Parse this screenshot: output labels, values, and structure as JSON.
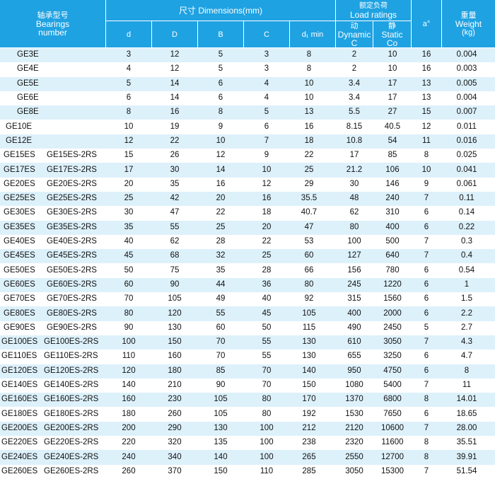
{
  "header": {
    "bearings": [
      "轴承型号",
      "Bearings",
      "number"
    ],
    "dimensions": "尺寸 Dimensions(mm)",
    "load": [
      "额定负荷",
      "Load ratings"
    ],
    "angle": "a°",
    "weight": [
      "重量",
      "Weight",
      "(kg)"
    ],
    "columns": [
      "d",
      "D",
      "B",
      "C",
      "d₁ min"
    ],
    "dynamic": [
      "动",
      "Dynamic",
      "C"
    ],
    "static": [
      "静",
      "Static",
      "Co"
    ]
  },
  "rows": [
    {
      "model": "GE3E",
      "values": [
        "3",
        "12",
        "5",
        "3",
        "8",
        "2",
        "10",
        "16",
        "0.004"
      ]
    },
    {
      "model": "GE4E",
      "values": [
        "4",
        "12",
        "5",
        "3",
        "8",
        "2",
        "10",
        "16",
        "0.003"
      ]
    },
    {
      "model": "GE5E",
      "values": [
        "5",
        "14",
        "6",
        "4",
        "10",
        "3.4",
        "17",
        "13",
        "0.005"
      ]
    },
    {
      "model": "GE6E",
      "values": [
        "6",
        "14",
        "6",
        "4",
        "10",
        "3.4",
        "17",
        "13",
        "0.004"
      ]
    },
    {
      "model": "GE8E",
      "values": [
        "8",
        "16",
        "8",
        "5",
        "13",
        "5.5",
        "27",
        "15",
        "0.007"
      ]
    },
    {
      "model": "GE10E",
      "values": [
        "10",
        "19",
        "9",
        "6",
        "16",
        "8.15",
        "40.5",
        "12",
        "0.011"
      ]
    },
    {
      "model": "GE12E",
      "values": [
        "12",
        "22",
        "10",
        "7",
        "18",
        "10.8",
        "54",
        "11",
        "0.016"
      ]
    },
    {
      "model": "GE15ES",
      "seal": "GE15ES-2RS",
      "values": [
        "15",
        "26",
        "12",
        "9",
        "22",
        "17",
        "85",
        "8",
        "0.025"
      ]
    },
    {
      "model": "GE17ES",
      "seal": "GE17ES-2RS",
      "values": [
        "17",
        "30",
        "14",
        "10",
        "25",
        "21.2",
        "106",
        "10",
        "0.041"
      ]
    },
    {
      "model": "GE20ES",
      "seal": "GE20ES-2RS",
      "values": [
        "20",
        "35",
        "16",
        "12",
        "29",
        "30",
        "146",
        "9",
        "0.061"
      ]
    },
    {
      "model": "GE25ES",
      "seal": "GE25ES-2RS",
      "values": [
        "25",
        "42",
        "20",
        "16",
        "35.5",
        "48",
        "240",
        "7",
        "0.11"
      ]
    },
    {
      "model": "GE30ES",
      "seal": "GE30ES-2RS",
      "values": [
        "30",
        "47",
        "22",
        "18",
        "40.7",
        "62",
        "310",
        "6",
        "0.14"
      ]
    },
    {
      "model": "GE35ES",
      "seal": "GE35ES-2RS",
      "values": [
        "35",
        "55",
        "25",
        "20",
        "47",
        "80",
        "400",
        "6",
        "0.22"
      ]
    },
    {
      "model": "GE40ES",
      "seal": "GE40ES-2RS",
      "values": [
        "40",
        "62",
        "28",
        "22",
        "53",
        "100",
        "500",
        "7",
        "0.3"
      ]
    },
    {
      "model": "GE45ES",
      "seal": "GE45ES-2RS",
      "values": [
        "45",
        "68",
        "32",
        "25",
        "60",
        "127",
        "640",
        "7",
        "0.4"
      ]
    },
    {
      "model": "GE50ES",
      "seal": "GE50ES-2RS",
      "values": [
        "50",
        "75",
        "35",
        "28",
        "66",
        "156",
        "780",
        "6",
        "0.54"
      ]
    },
    {
      "model": "GE60ES",
      "seal": "GE60ES-2RS",
      "values": [
        "60",
        "90",
        "44",
        "36",
        "80",
        "245",
        "1220",
        "6",
        "1"
      ]
    },
    {
      "model": "GE70ES",
      "seal": "GE70ES-2RS",
      "values": [
        "70",
        "105",
        "49",
        "40",
        "92",
        "315",
        "1560",
        "6",
        "1.5"
      ]
    },
    {
      "model": "GE80ES",
      "seal": "GE80ES-2RS",
      "values": [
        "80",
        "120",
        "55",
        "45",
        "105",
        "400",
        "2000",
        "6",
        "2.2"
      ]
    },
    {
      "model": "GE90ES",
      "seal": "GE90ES-2RS",
      "values": [
        "90",
        "130",
        "60",
        "50",
        "115",
        "490",
        "2450",
        "5",
        "2.7"
      ]
    },
    {
      "model": "GE100ES",
      "seal": "GE100ES-2RS",
      "values": [
        "100",
        "150",
        "70",
        "55",
        "130",
        "610",
        "3050",
        "7",
        "4.3"
      ]
    },
    {
      "model": "GE110ES",
      "seal": "GE110ES-2RS",
      "values": [
        "110",
        "160",
        "70",
        "55",
        "130",
        "655",
        "3250",
        "6",
        "4.7"
      ]
    },
    {
      "model": "GE120ES",
      "seal": "GE120ES-2RS",
      "values": [
        "120",
        "180",
        "85",
        "70",
        "140",
        "950",
        "4750",
        "6",
        "8"
      ]
    },
    {
      "model": "GE140ES",
      "seal": "GE140ES-2RS",
      "values": [
        "140",
        "210",
        "90",
        "70",
        "150",
        "1080",
        "5400",
        "7",
        "11"
      ]
    },
    {
      "model": "GE160ES",
      "seal": "GE160ES-2RS",
      "values": [
        "160",
        "230",
        "105",
        "80",
        "170",
        "1370",
        "6800",
        "8",
        "14.01"
      ]
    },
    {
      "model": "GE180ES",
      "seal": "GE180ES-2RS",
      "values": [
        "180",
        "260",
        "105",
        "80",
        "192",
        "1530",
        "7650",
        "6",
        "18.65"
      ]
    },
    {
      "model": "GE200ES",
      "seal": "GE200ES-2RS",
      "values": [
        "200",
        "290",
        "130",
        "100",
        "212",
        "2120",
        "10600",
        "7",
        "28.00"
      ]
    },
    {
      "model": "GE220ES",
      "seal": "GE220ES-2RS",
      "values": [
        "220",
        "320",
        "135",
        "100",
        "238",
        "2320",
        "11600",
        "8",
        "35.51"
      ]
    },
    {
      "model": "GE240ES",
      "seal": "GE240ES-2RS",
      "values": [
        "240",
        "340",
        "140",
        "100",
        "265",
        "2550",
        "12700",
        "8",
        "39.91"
      ]
    },
    {
      "model": "GE260ES",
      "seal": "GE260ES-2RS",
      "values": [
        "260",
        "370",
        "150",
        "110",
        "285",
        "3050",
        "15300",
        "7",
        "51.54"
      ]
    }
  ]
}
